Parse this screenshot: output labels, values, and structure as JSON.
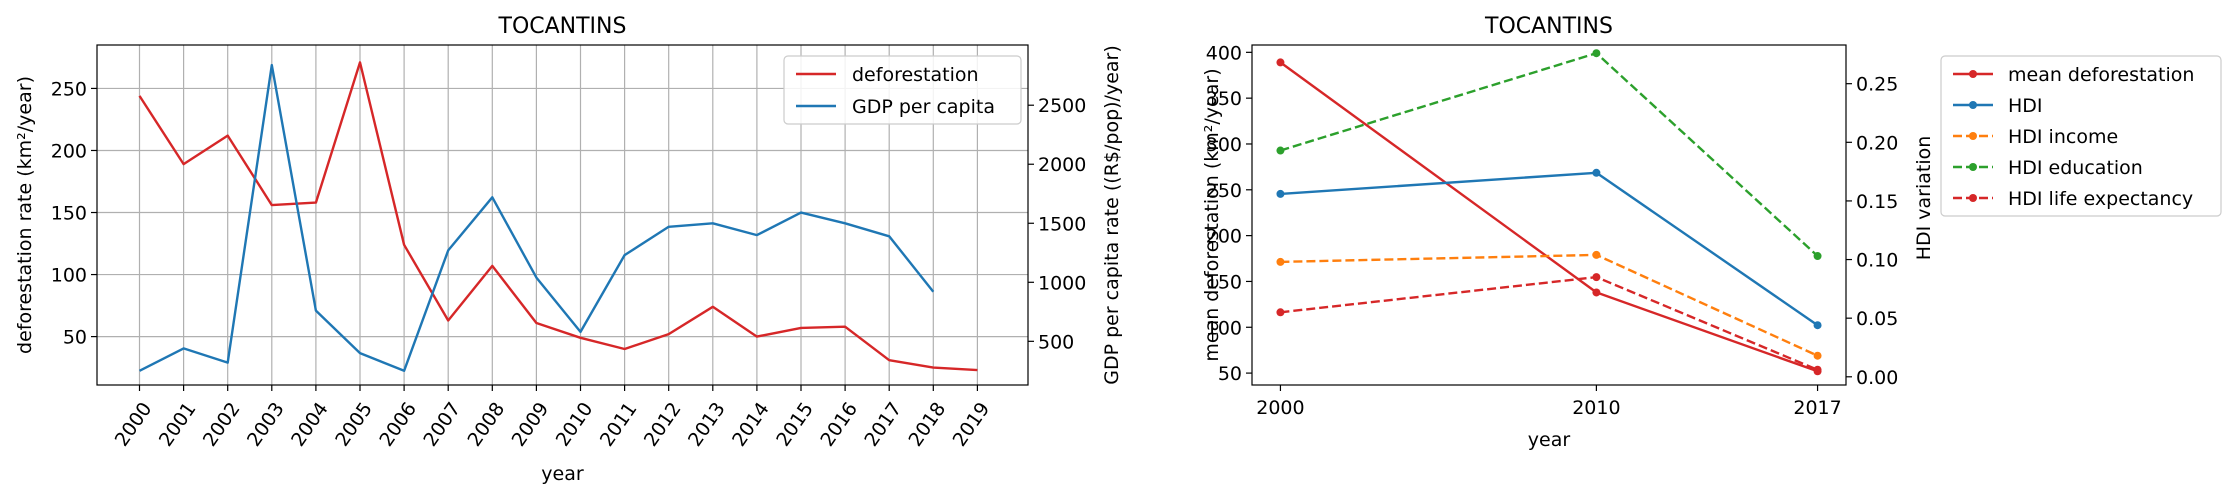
{
  "chart_data": [
    {
      "type": "line",
      "title": "TOCANTINS",
      "xlabel": "year",
      "ylabel": "deforestation rate (km²/year)",
      "ylabel_right": "GDP per capita rate ((R$/pop)/year)",
      "x": [
        "2000",
        "2001",
        "2002",
        "2003",
        "2004",
        "2005",
        "2006",
        "2007",
        "2008",
        "2009",
        "2010",
        "2011",
        "2012",
        "2013",
        "2014",
        "2015",
        "2016",
        "2017",
        "2018",
        "2019"
      ],
      "ylim": [
        11,
        285
      ],
      "ylim_right": [
        130,
        3010
      ],
      "yticks": [
        50,
        100,
        150,
        200,
        250
      ],
      "yticks_right": [
        500,
        1000,
        1500,
        2000,
        2500
      ],
      "grid": true,
      "legend_position": "top-right",
      "series": [
        {
          "name": "deforestation",
          "axis": "left",
          "color": "#d62728",
          "values": [
            244,
            189,
            212,
            156,
            158,
            271,
            124,
            63,
            107,
            61,
            49,
            40,
            52,
            74,
            50,
            57,
            58,
            31,
            25,
            23
          ]
        },
        {
          "name": "GDP per capita",
          "axis": "right",
          "color": "#1f77b4",
          "values": [
            250,
            440,
            320,
            2840,
            760,
            400,
            250,
            1270,
            1720,
            1040,
            580,
            1230,
            1470,
            1500,
            1400,
            1590,
            1500,
            1390,
            920,
            null
          ]
        }
      ]
    },
    {
      "type": "line",
      "title": "TOCANTINS",
      "xlabel": "year",
      "ylabel": "mean deforestation (km²/year)",
      "ylabel_right": "HDI variation",
      "x": [
        "2000",
        "2010",
        "2017"
      ],
      "ylim": [
        37,
        408
      ],
      "ylim_right": [
        -0.007,
        0.283
      ],
      "yticks": [
        50,
        100,
        150,
        200,
        250,
        300,
        350,
        400
      ],
      "yticks_right": [
        "0.00",
        "0.05",
        "0.10",
        "0.15",
        "0.20",
        "0.25"
      ],
      "grid": false,
      "legend_position": "outside-right",
      "series": [
        {
          "name": "mean deforestation",
          "axis": "left",
          "color": "#d62728",
          "dashed": false,
          "values": [
            389,
            138,
            52
          ]
        },
        {
          "name": "HDI",
          "axis": "right",
          "color": "#1f77b4",
          "dashed": false,
          "values": [
            0.156,
            0.174,
            0.044
          ]
        },
        {
          "name": "HDI income",
          "axis": "right",
          "color": "#ff7f0e",
          "dashed": true,
          "values": [
            0.098,
            0.104,
            0.018
          ]
        },
        {
          "name": "HDI education",
          "axis": "right",
          "color": "#2ca02c",
          "dashed": true,
          "values": [
            0.193,
            0.276,
            0.103
          ]
        },
        {
          "name": "HDI life expectancy",
          "axis": "right",
          "color": "#d62728",
          "dashed": true,
          "values": [
            0.055,
            0.085,
            0.006
          ]
        }
      ]
    }
  ]
}
